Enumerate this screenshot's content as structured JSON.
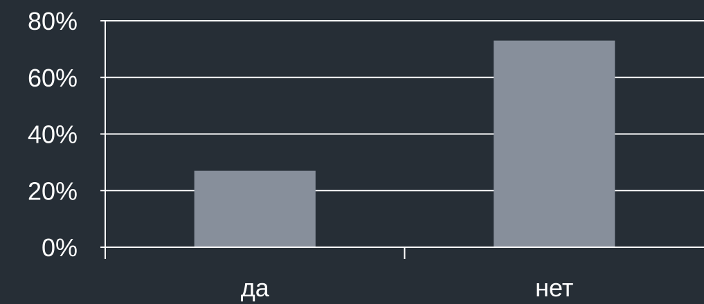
{
  "colors": {
    "background": "#262e36",
    "bar": "#878f9b",
    "axis": "#ffffff",
    "gridline": "#ffffff",
    "text": "#ffffff"
  },
  "chart_data": {
    "type": "bar",
    "title": "",
    "xlabel": "",
    "ylabel": "",
    "categories": [
      "да",
      "нет"
    ],
    "values": [
      27,
      73
    ],
    "unit": "%",
    "ylim": [
      0,
      80
    ],
    "yticks": [
      0,
      20,
      40,
      60,
      80
    ],
    "ytick_labels": [
      "0%",
      "20%",
      "40%",
      "60%",
      "80%"
    ],
    "grid": true,
    "legend": "none"
  }
}
